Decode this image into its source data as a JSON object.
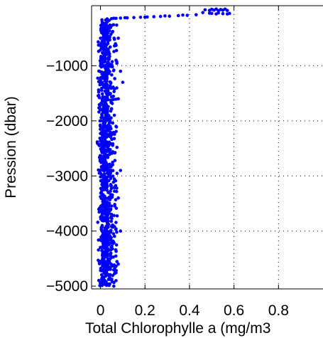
{
  "chart_data": {
    "type": "scatter",
    "title": "",
    "xlabel": "Total Chlorophylle a (mg/m3",
    "ylabel": "Pression (dbar)",
    "xlim": [
      -0.04,
      1.0
    ],
    "ylim": [
      -5050,
      90
    ],
    "xticks": [
      0,
      0.2,
      0.4,
      0.6,
      0.8
    ],
    "xtick_labels": [
      "0",
      "0.2",
      "0.4",
      "0.6",
      "0.8"
    ],
    "yticks": [
      -1000,
      -2000,
      -3000,
      -4000,
      -5000
    ],
    "ytick_labels": [
      "−1000",
      "−2000",
      "−3000",
      "−4000",
      "−5000"
    ],
    "grid": true,
    "legend": "none",
    "series": [
      {
        "color": "#0000ff",
        "marker": "dot",
        "description_points": [
          {
            "x": 0.49,
            "y": 5
          },
          {
            "x": 0.51,
            "y": 10
          },
          {
            "x": 0.53,
            "y": 0
          },
          {
            "x": 0.55,
            "y": 8
          },
          {
            "x": 0.57,
            "y": 3
          },
          {
            "x": 0.47,
            "y": 15
          },
          {
            "x": 0.5,
            "y": 25
          },
          {
            "x": 0.52,
            "y": 30
          },
          {
            "x": 0.54,
            "y": 20
          },
          {
            "x": 0.56,
            "y": 28
          },
          {
            "x": 0.52,
            "y": -60
          },
          {
            "x": 0.5,
            "y": -50
          },
          {
            "x": 0.55,
            "y": -55
          },
          {
            "x": 0.57,
            "y": -60
          },
          {
            "x": 0.49,
            "y": -45
          },
          {
            "x": 0.53,
            "y": -40
          },
          {
            "x": 0.46,
            "y": -35
          },
          {
            "x": 0.58,
            "y": -50
          },
          {
            "x": 0.43,
            "y": -75
          },
          {
            "x": 0.39,
            "y": -85
          },
          {
            "x": 0.35,
            "y": -90
          },
          {
            "x": 0.31,
            "y": -100
          },
          {
            "x": 0.27,
            "y": -105
          },
          {
            "x": 0.24,
            "y": -110
          },
          {
            "x": 0.21,
            "y": -115
          },
          {
            "x": 0.18,
            "y": -120
          },
          {
            "x": 0.15,
            "y": -125
          },
          {
            "x": 0.12,
            "y": -130
          },
          {
            "x": 0.09,
            "y": -135
          },
          {
            "x": 0.07,
            "y": -140
          },
          {
            "x": 0.05,
            "y": -145
          },
          {
            "x": 0.03,
            "y": -150
          },
          {
            "x": 0.37,
            "y": -80
          },
          {
            "x": 0.29,
            "y": -95
          },
          {
            "x": 0.2,
            "y": -118
          },
          {
            "x": 0.11,
            "y": -128
          },
          {
            "x": 0.06,
            "y": -138
          }
        ],
        "bulk_cloud": {
          "x_min": -0.02,
          "x_max": 0.06,
          "y_min": -5000,
          "y_max": -150,
          "count": 900
        },
        "outliers": [
          {
            "x": 0.08,
            "y": -500
          },
          {
            "x": 0.07,
            "y": -900
          },
          {
            "x": 0.09,
            "y": -1100
          },
          {
            "x": 0.1,
            "y": -1300
          },
          {
            "x": 0.08,
            "y": -1600
          },
          {
            "x": 0.07,
            "y": -2100
          },
          {
            "x": 0.09,
            "y": -2900
          },
          {
            "x": 0.08,
            "y": -3400
          },
          {
            "x": 0.09,
            "y": -4000
          },
          {
            "x": 0.08,
            "y": -4600
          },
          {
            "x": 0.07,
            "y": -4900
          },
          {
            "x": 0.06,
            "y": -5000
          }
        ]
      }
    ]
  }
}
